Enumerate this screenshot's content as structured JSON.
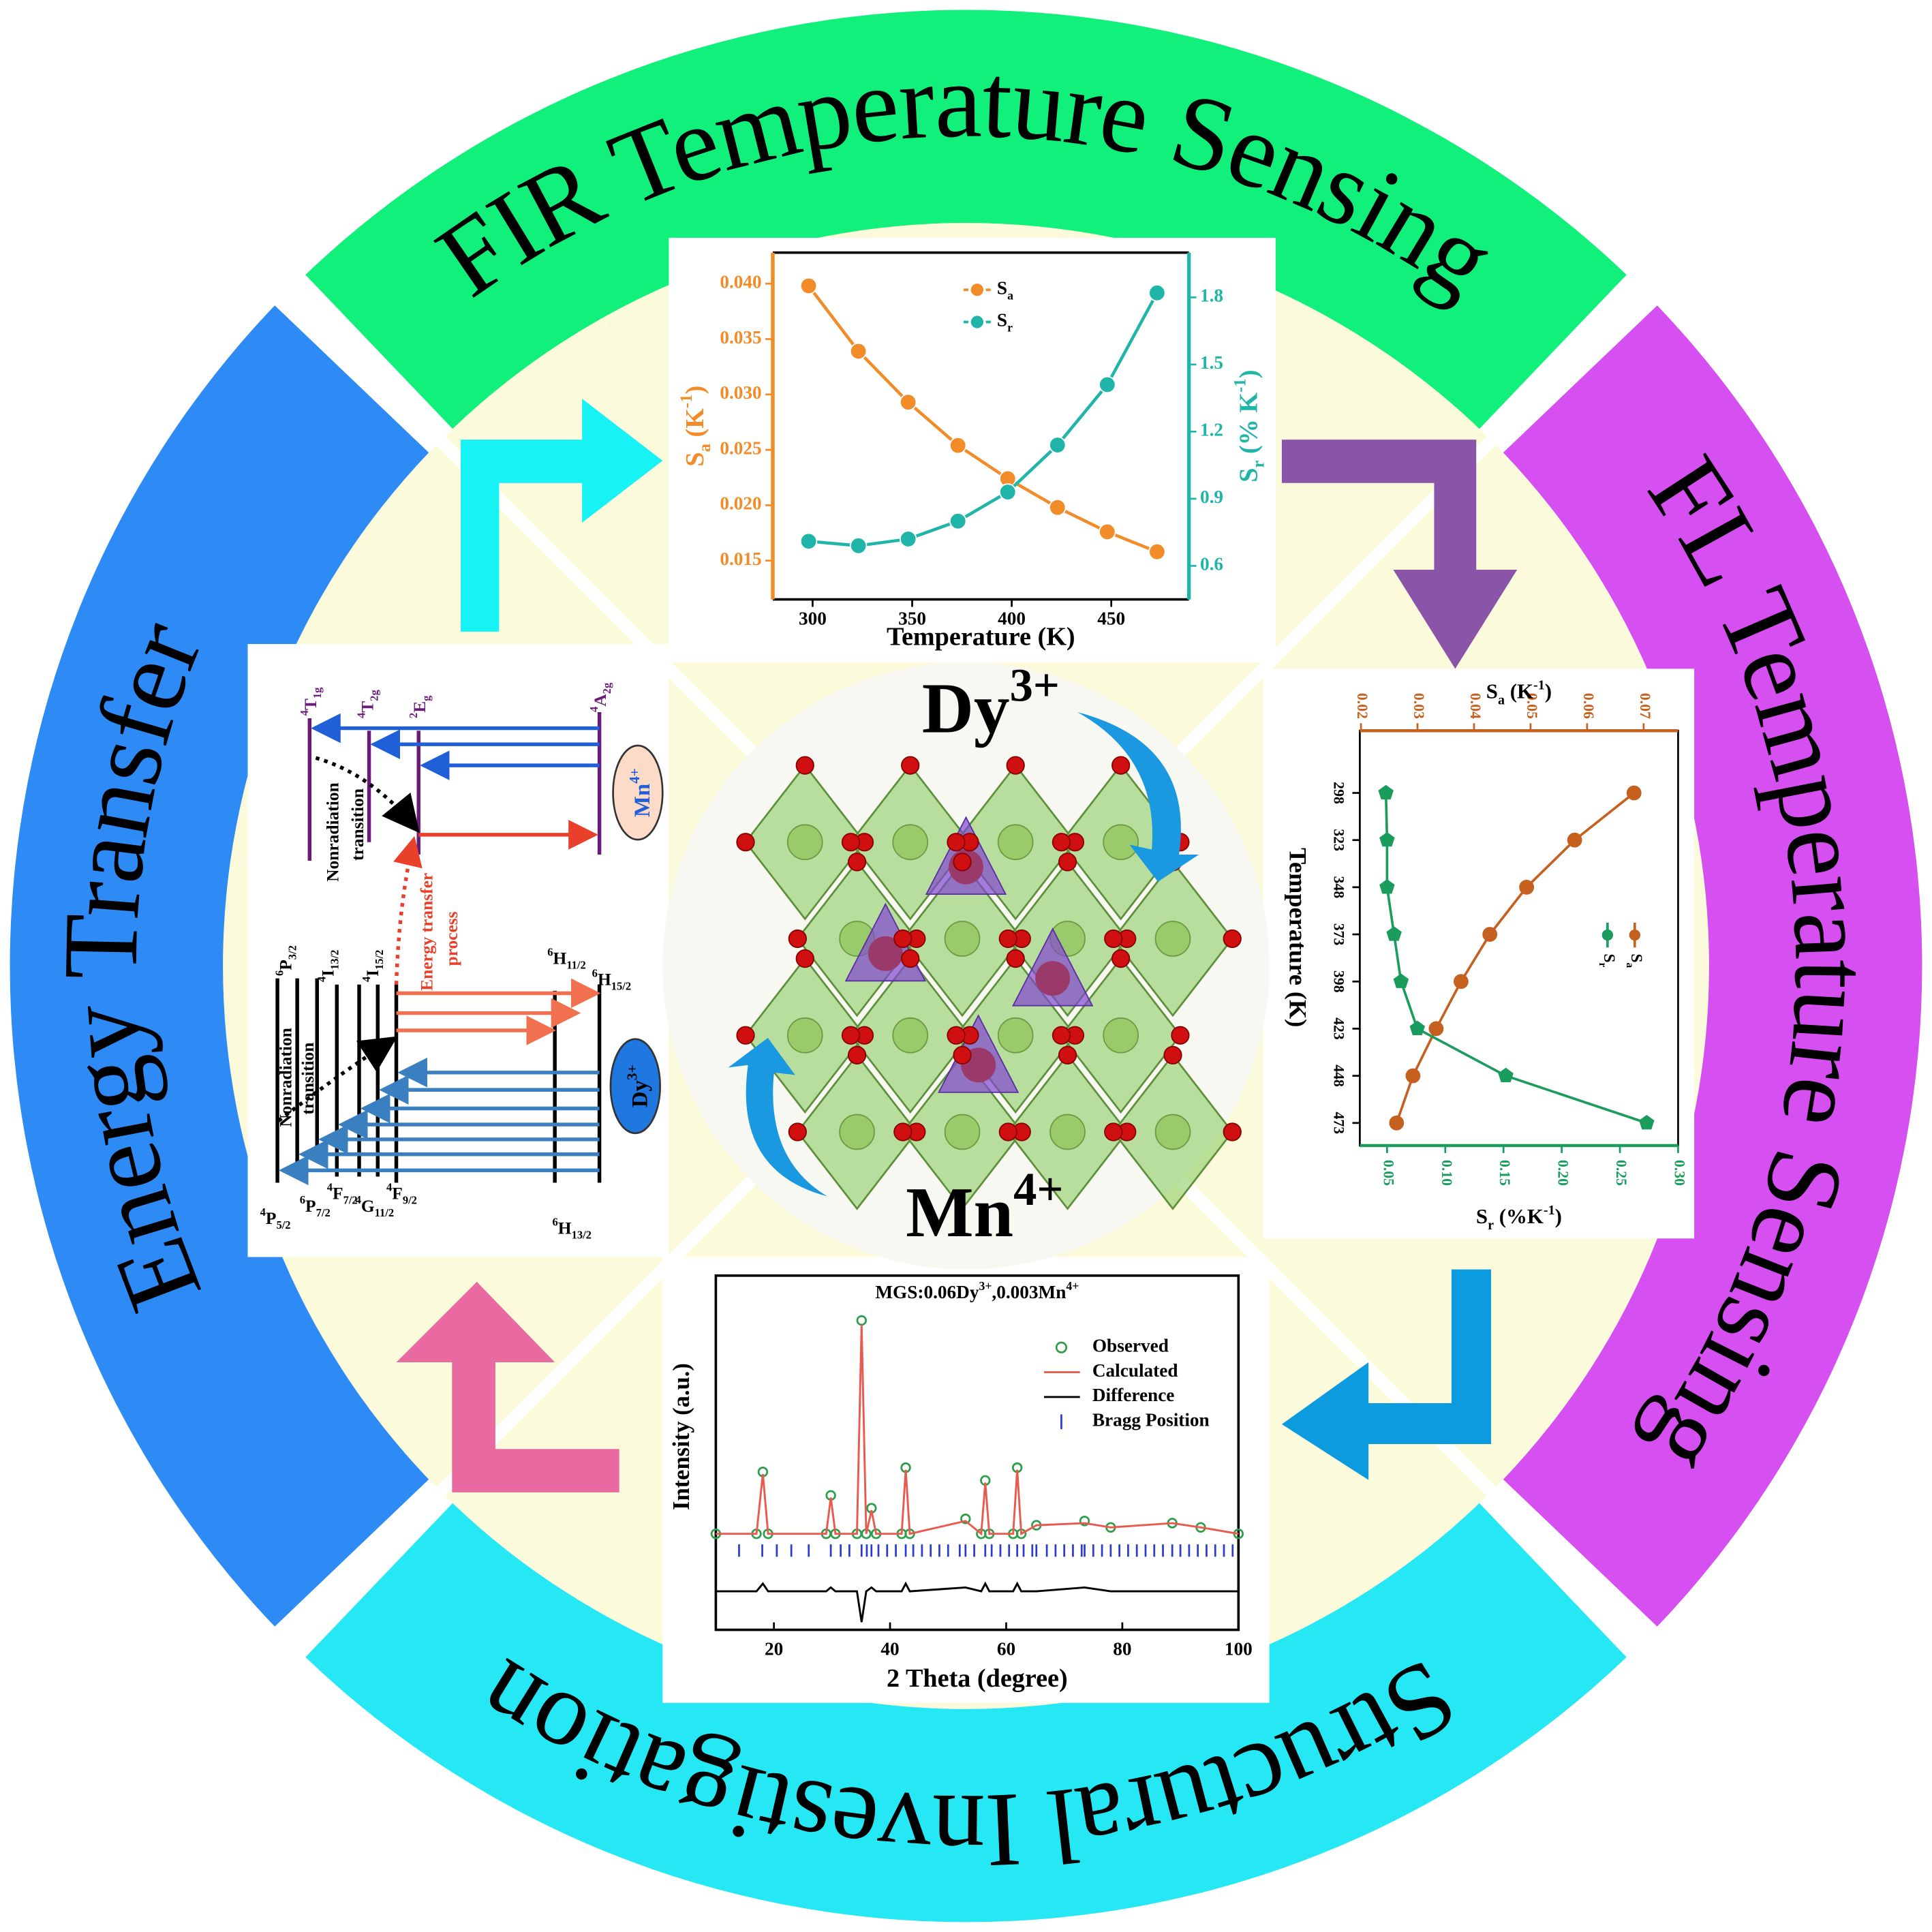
{
  "ring": {
    "left": "Energy Transfer",
    "top": "FIR Temperature Sensing",
    "right": "FL Temperature Sensing",
    "bottom": "Structural Investigation"
  },
  "center": {
    "ions": [
      {
        "symbol": "Dy",
        "charge": "3+"
      },
      {
        "symbol": "Mn",
        "charge": "4+"
      }
    ]
  },
  "energy_levels": {
    "mn_levels": [
      {
        "sup": "4",
        "term": "T",
        "sub": "1g"
      },
      {
        "sup": "4",
        "term": "T",
        "sub": "2g"
      },
      {
        "sup": "2",
        "term": "E",
        "sub": "g"
      },
      {
        "sup": "4",
        "term": "A",
        "sub": "2g"
      }
    ],
    "dy_upper": [
      {
        "sup": "6",
        "term": "P",
        "sub": "3/2"
      },
      {
        "sup": "4",
        "term": "I",
        "sub": "13/2"
      },
      {
        "sup": "4",
        "term": "I",
        "sub": "15/2"
      },
      {
        "sup": "6",
        "term": "H",
        "sub": "11/2"
      },
      {
        "sup": "6",
        "term": "H",
        "sub": "15/2"
      }
    ],
    "dy_lower": [
      {
        "sup": "4",
        "term": "P",
        "sub": "5/2"
      },
      {
        "sup": "6",
        "term": "P",
        "sub": "7/2"
      },
      {
        "sup": "4",
        "term": "F",
        "sub": "7/2"
      },
      {
        "sup": "4",
        "term": "G",
        "sub": "11/2"
      },
      {
        "sup": "4",
        "term": "F",
        "sub": "9/2"
      },
      {
        "sup": "6",
        "term": "H",
        "sub": "13/2"
      }
    ],
    "nonradiation": [
      "Nonradiation",
      "transition"
    ],
    "energy_transfer": [
      "Energy transfer",
      "process"
    ],
    "mn_ion": {
      "symbol": "Mn",
      "charge": "4+"
    },
    "dy_ion": {
      "symbol": "Dy",
      "charge": "3+"
    }
  },
  "chart_data": [
    {
      "type": "line",
      "x": [
        298,
        323,
        348,
        373,
        398,
        423,
        448,
        473
      ],
      "xlim": [
        280,
        489
      ],
      "xticks": [
        300,
        350,
        400,
        450
      ],
      "xlabel": "Temperature (K)",
      "ylim": [
        0.0115,
        0.0428
      ],
      "yticks": [
        0.015,
        {
          "value": 0.02,
          "label": "0.020"
        },
        0.025,
        {
          "value": 0.03,
          "label": "0.030"
        },
        0.035,
        {
          "value": 0.04,
          "label": "0.040"
        }
      ],
      "y2lim": [
        0.45,
        2.0
      ],
      "y2ticks": [
        0.6,
        0.9,
        1.2,
        1.5,
        1.8
      ],
      "ylabel": {
        "main": "S",
        "sub": "a",
        "unit": " (K",
        "sup": "-1",
        "close": ")"
      },
      "y2label": {
        "main": "S",
        "sub": "r",
        "unit": " (% K",
        "sup": "-1",
        "close": ")"
      },
      "series": [
        {
          "name": "S",
          "name_sub": "a",
          "color": "#f28c28",
          "values": [
            0.0398,
            0.0339,
            0.0293,
            0.0254,
            0.0224,
            0.0198,
            0.0176,
            0.0158
          ]
        },
        {
          "name": "S",
          "name_sub": "r",
          "color": "#1fb5a8",
          "axis": "y2",
          "values": [
            0.71,
            0.69,
            0.72,
            0.8,
            0.93,
            1.14,
            1.41,
            1.82
          ]
        }
      ]
    },
    {
      "type": "line",
      "orientation": "horizontal",
      "y": [
        298,
        323,
        348,
        373,
        398,
        423,
        448,
        473
      ],
      "ylim": [
        485,
        265
      ],
      "yticks": [
        298,
        323,
        348,
        373,
        398,
        423,
        448,
        473
      ],
      "ylabel": "Temperature (K)",
      "xlim": [
        0.0266,
        0.3
      ],
      "xticks": [
        0.05,
        {
          "value": 0.1,
          "label": "0.10"
        },
        0.15,
        {
          "value": 0.2,
          "label": "0.20"
        },
        0.25,
        {
          "value": 0.3,
          "label": "0.30"
        }
      ],
      "xlabel": {
        "main": "S",
        "sub": "r",
        "unit": " (%K",
        "sup": "-1",
        "close": ")"
      },
      "x2lim": [
        0.0198,
        0.0761
      ],
      "x2ticks": [
        0.02,
        0.03,
        0.04,
        0.05,
        0.06,
        0.07
      ],
      "x2label": {
        "main": "S",
        "sub": "a",
        "unit": " (K",
        "sup": "-1",
        "close": ")"
      },
      "series": [
        {
          "name": "S",
          "name_sub": "a",
          "color": "#c5601f",
          "axis": "x2",
          "values": [
            0.0683,
            0.0578,
            0.0493,
            0.0428,
            0.0377,
            0.0333,
            0.0292,
            0.0263
          ]
        },
        {
          "name": "S",
          "name_sub": "r",
          "color": "#1a9c5c",
          "values": [
            0.049,
            0.05,
            0.05,
            0.056,
            0.062,
            0.076,
            0.152,
            0.273
          ]
        }
      ]
    },
    {
      "type": "line",
      "title": [
        "MGS:0.06Dy",
        "3+",
        ",0.003Mn",
        "4+"
      ],
      "x": [
        10,
        17,
        18.1,
        19,
        29,
        29.8,
        30.6,
        34.3,
        35.1,
        35.9,
        36.8,
        37.6,
        42,
        42.7,
        43.4,
        53,
        55.7,
        56.4,
        57.1,
        61.2,
        61.9,
        62.6,
        65.2,
        73.5,
        78,
        88.6,
        93.5,
        100
      ],
      "xlim": [
        10,
        100
      ],
      "xticks": [
        20,
        40,
        60,
        80,
        100
      ],
      "xlabel": "2 Theta (degree)",
      "ylabel": "Intensity (a.u.)",
      "ylim": [
        -45,
        121
      ],
      "y2lim": [
        -10,
        82
      ],
      "series": [
        {
          "name": "Observed",
          "color": "#2e9e4a",
          "marker": "circle",
          "values": [
            0,
            0,
            29,
            0,
            0,
            18,
            0,
            0,
            100,
            0,
            12,
            0,
            0,
            31,
            0,
            7,
            0,
            25,
            0,
            0,
            31,
            0,
            4,
            6,
            3,
            5,
            3,
            0
          ]
        },
        {
          "name": "Calculated",
          "color": "#e85a4f",
          "values": [
            0,
            0,
            28,
            0,
            0,
            17,
            0,
            0,
            98,
            0,
            11,
            0,
            0,
            30,
            0,
            6,
            0,
            24,
            0,
            0,
            30,
            0,
            4,
            5,
            3,
            5,
            3,
            0
          ]
        },
        {
          "name": "Difference",
          "color": "#000000",
          "axis": "y2",
          "values": [
            0,
            0,
            2,
            0,
            0,
            1,
            0,
            0,
            -8,
            0,
            1,
            0,
            0,
            2,
            0,
            1,
            0,
            2,
            0,
            0,
            2,
            0,
            0,
            1,
            0,
            0,
            0,
            0
          ]
        }
      ],
      "bragg": {
        "name": "Bragg Position",
        "color": "#2a3bd0",
        "positions": [
          14,
          18,
          20.5,
          23,
          26,
          29.8,
          31.5,
          33,
          35.1,
          36,
          36.8,
          38,
          39.5,
          41,
          42.7,
          44,
          45.5,
          47,
          48.5,
          50,
          52,
          53,
          54.5,
          56.4,
          57.5,
          59,
          60.5,
          61.9,
          63,
          64.5,
          65.2,
          67,
          68.5,
          70,
          71.5,
          73,
          73.5,
          75,
          76.5,
          78,
          79.5,
          81,
          82.5,
          84,
          85.5,
          87,
          88.6,
          90,
          91.5,
          93,
          94.5,
          96,
          97.5,
          99
        ]
      }
    }
  ]
}
